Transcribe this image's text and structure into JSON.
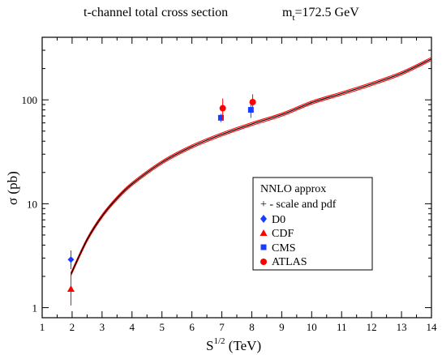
{
  "chart_data": {
    "type": "line",
    "title": "t-channel total  cross section",
    "title_right": "=172.5 GeV",
    "title_right_m": "m",
    "title_right_sub": "t",
    "xlabel": "S",
    "xlabel_sup": "1/2",
    "xlabel_unit": " (TeV)",
    "ylabel": "σ (pb)",
    "xlim": [
      1,
      14
    ],
    "ylim": [
      0.8,
      400
    ],
    "yscale": "log",
    "x_ticks": [
      "1",
      "2",
      "3",
      "4",
      "5",
      "6",
      "7",
      "8",
      "9",
      "10",
      "11",
      "12",
      "13",
      "14"
    ],
    "y_ticks": [
      "1",
      "10",
      "100"
    ],
    "legend": {
      "position": "inside-right",
      "entries": [
        {
          "label": "NNLO approx",
          "marker": "none"
        },
        {
          "label": "+ - scale and pdf",
          "marker": "none"
        },
        {
          "label": "D0",
          "marker": "diamond",
          "color": "#1a3cff"
        },
        {
          "label": "CDF",
          "marker": "triangle",
          "color": "#ff0000"
        },
        {
          "label": "CMS",
          "marker": "square",
          "color": "#1a3cff"
        },
        {
          "label": "ATLAS",
          "marker": "circle",
          "color": "#ff0000"
        }
      ]
    },
    "curve": {
      "x": [
        1.96,
        2.5,
        3,
        3.5,
        4,
        5,
        6,
        7,
        8,
        9,
        10,
        11,
        12,
        13,
        14
      ],
      "y": [
        2.1,
        4.5,
        7.6,
        11.3,
        15.5,
        25,
        35.5,
        46.5,
        58.5,
        72,
        94,
        115,
        142,
        180,
        248
      ],
      "band_color": "#ff0000",
      "line_color": "#000000"
    },
    "points": [
      {
        "series": "D0",
        "x": 1.96,
        "y": 2.9,
        "yerr_low": 0.55,
        "yerr_high": 0.65,
        "color": "#1a3cff",
        "marker": "diamond"
      },
      {
        "series": "CDF",
        "x": 1.96,
        "y": 1.5,
        "yerr_low": 0.45,
        "yerr_high": 0.7,
        "color": "#ff0000",
        "marker": "triangle"
      },
      {
        "series": "CMS",
        "x": 6.97,
        "y": 67.2,
        "yerr_low": 6.1,
        "yerr_high": 6.1,
        "color": "#1a3cff",
        "marker": "square"
      },
      {
        "series": "CMS",
        "x": 7.97,
        "y": 80.1,
        "yerr_low": 13,
        "yerr_high": 13,
        "color": "#1a3cff",
        "marker": "square"
      },
      {
        "series": "ATLAS",
        "x": 7.03,
        "y": 83,
        "yerr_low": 20,
        "yerr_high": 20,
        "color": "#ff0000",
        "marker": "circle"
      },
      {
        "series": "ATLAS",
        "x": 8.03,
        "y": 95.1,
        "yerr_low": 18,
        "yerr_high": 18,
        "color": "#ff0000",
        "marker": "circle"
      }
    ]
  }
}
